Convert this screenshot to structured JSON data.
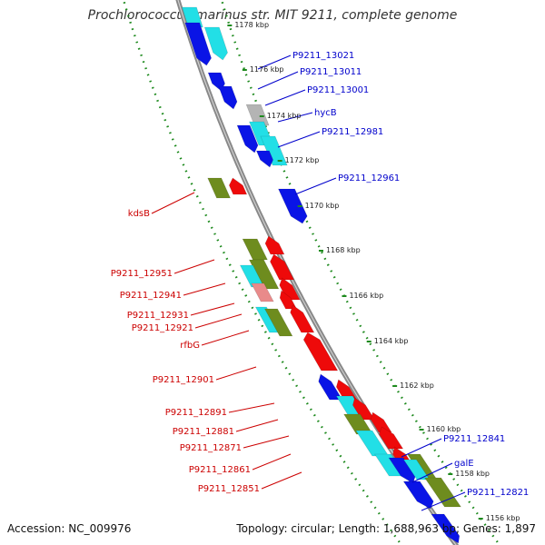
{
  "title": "Prochlorococcus marinus str. MIT 9211, complete genome",
  "footer": {
    "accession": "Accession: NC_009976",
    "summary": "Topology: circular; Length: 1,688,963 bp; Genes: 1,897"
  },
  "colors": {
    "backbone": "#808080",
    "dots": "#1e8a1e",
    "blue_gene": "#0a14e6",
    "red_gene": "#ee0a0a",
    "cyan": "#22dfe6",
    "olive": "#6e8c1e",
    "grey": "#b4b4b4",
    "pink": "#e98a8a",
    "blue_label": "#0000cc",
    "red_label": "#cc0000"
  },
  "kbp_ticks": [
    "1178 kbp",
    "1176 kbp",
    "1174 kbp",
    "1172 kbp",
    "1170 kbp",
    "1168 kbp",
    "1166 kbp",
    "1164 kbp",
    "1162 kbp",
    "1160 kbp",
    "1158 kbp",
    "1156 kbp"
  ],
  "forward_labels": [
    "P9211_13021",
    "P9211_13011",
    "P9211_13001",
    "hycB",
    "P9211_12981",
    "P9211_12961",
    "P9211_12841",
    "galE",
    "P9211_12821"
  ],
  "reverse_labels": [
    "kdsB",
    "P9211_12951",
    "P9211_12941",
    "P9211_12931",
    "P9211_12921",
    "rfbG",
    "P9211_12901",
    "P9211_12891",
    "P9211_12881",
    "P9211_12871",
    "P9211_12861",
    "P9211_12851"
  ]
}
